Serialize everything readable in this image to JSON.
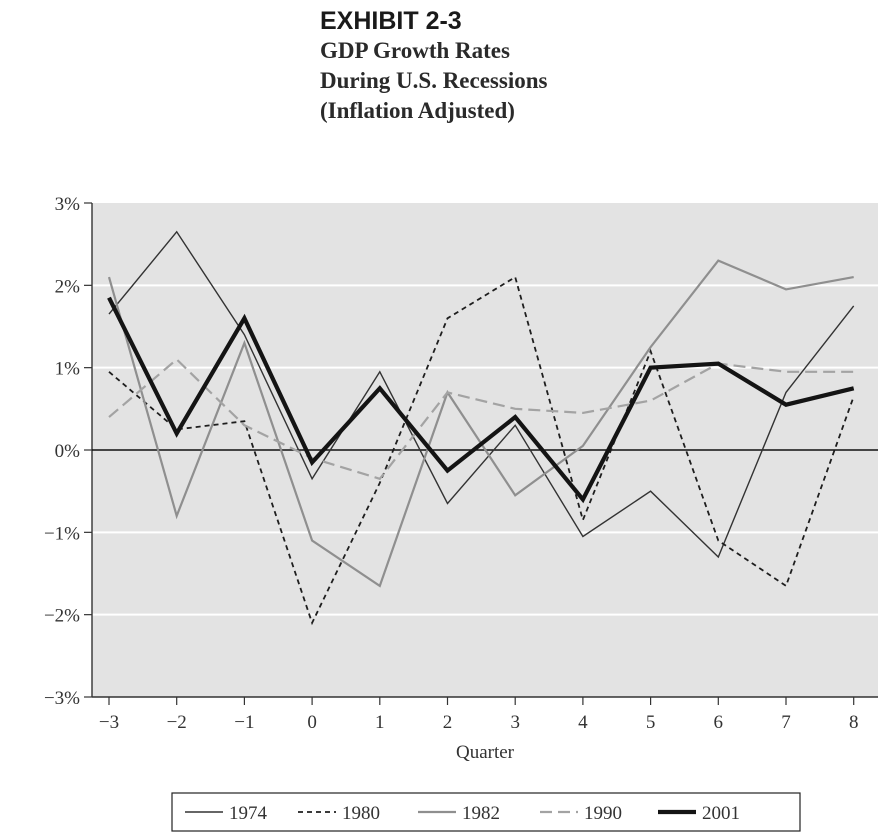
{
  "header": {
    "exhibit": "EXHIBIT 2-3",
    "title_lines": [
      "GDP Growth Rates",
      "During U.S. Recessions",
      "(Inflation Adjusted)"
    ]
  },
  "colors": {
    "plot_bg": "#e3e3e3",
    "grid": "#ffffff",
    "axis": "#333333",
    "s1974": "#333333",
    "s1980": "#1e1e1e",
    "s1982": "#8f8f8f",
    "s1990": "#a3a3a3",
    "s2001": "#141414"
  },
  "chart_data": {
    "type": "line",
    "title": "GDP Growth Rates During U.S. Recessions (Inflation Adjusted)",
    "xlabel": "Quarter",
    "ylabel": "",
    "x": [
      -3,
      -2,
      -1,
      0,
      1,
      2,
      3,
      4,
      5,
      6,
      7,
      8
    ],
    "x_tick_labels": [
      "−3",
      "−2",
      "−1",
      "0",
      "1",
      "2",
      "3",
      "4",
      "5",
      "6",
      "7",
      "8"
    ],
    "y_ticks": [
      -3,
      -2,
      -1,
      0,
      1,
      2,
      3
    ],
    "y_tick_labels": [
      "−3%",
      "−2%",
      "−1%",
      "0%",
      "1%",
      "2%",
      "3%"
    ],
    "ylim": [
      -3,
      3
    ],
    "grid": true,
    "zero_line": true,
    "legend_position": "bottom",
    "series": [
      {
        "name": "1974",
        "style": "solid-thin",
        "values": [
          1.65,
          2.65,
          1.4,
          -0.35,
          0.95,
          -0.65,
          0.3,
          -1.05,
          -0.5,
          -1.3,
          0.7,
          1.75
        ]
      },
      {
        "name": "1980",
        "style": "dashed",
        "values": [
          0.95,
          0.25,
          0.35,
          -2.1,
          -0.4,
          1.6,
          2.1,
          -0.85,
          1.2,
          -1.1,
          -1.65,
          0.65
        ]
      },
      {
        "name": "1982",
        "style": "solid-gray",
        "values": [
          2.1,
          -0.8,
          1.3,
          -1.1,
          -1.65,
          0.7,
          -0.55,
          0.05,
          1.25,
          2.3,
          1.95,
          2.1
        ]
      },
      {
        "name": "1990",
        "style": "dashed-gray",
        "values": [
          0.4,
          1.1,
          0.3,
          -0.1,
          -0.35,
          0.7,
          0.5,
          0.45,
          0.6,
          1.05,
          0.95,
          0.95
        ]
      },
      {
        "name": "2001",
        "style": "solid-bold",
        "values": [
          1.85,
          0.2,
          1.6,
          -0.15,
          0.75,
          -0.25,
          0.4,
          -0.6,
          1.0,
          1.05,
          0.55,
          0.75
        ]
      }
    ]
  }
}
